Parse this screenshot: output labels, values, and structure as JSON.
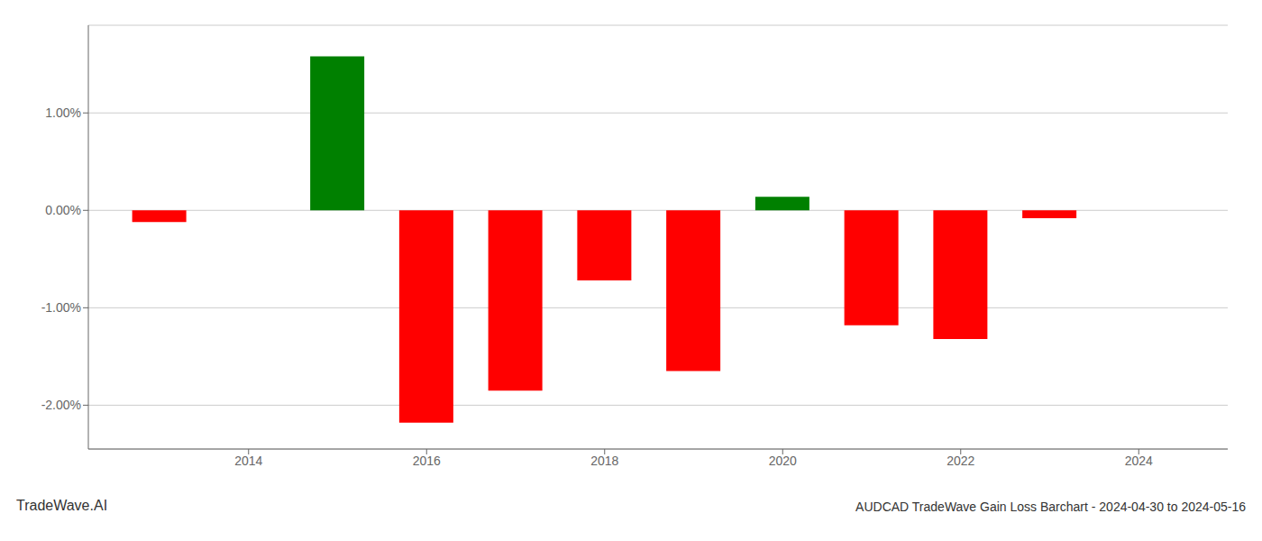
{
  "chart_data": {
    "type": "bar",
    "title": "AUDCAD TradeWave Gain Loss Barchart - 2024-04-30 to 2024-05-16",
    "annotations": [
      "TradeWave.AI"
    ],
    "x": [
      2013,
      2015,
      2016,
      2017,
      2018,
      2019,
      2020,
      2021,
      2022,
      2023
    ],
    "values": [
      -0.12,
      1.58,
      -2.18,
      -1.85,
      -0.72,
      -1.65,
      0.14,
      -1.18,
      -1.32,
      -0.08
    ],
    "colors": [
      "#ff0000",
      "#008000",
      "#ff0000",
      "#ff0000",
      "#ff0000",
      "#ff0000",
      "#008000",
      "#ff0000",
      "#ff0000",
      "#ff0000"
    ],
    "xlim": [
      2012.2,
      2025.0
    ],
    "xticks": [
      2014,
      2016,
      2018,
      2020,
      2022,
      2024
    ],
    "ylim": [
      -2.45,
      1.9
    ],
    "yticks": [
      {
        "value": -2.0,
        "label": "-2.00%"
      },
      {
        "value": -1.0,
        "label": "-1.00%"
      },
      {
        "value": 0.0,
        "label": "0.00%"
      },
      {
        "value": 1.0,
        "label": "1.00%"
      }
    ],
    "grid": true
  }
}
